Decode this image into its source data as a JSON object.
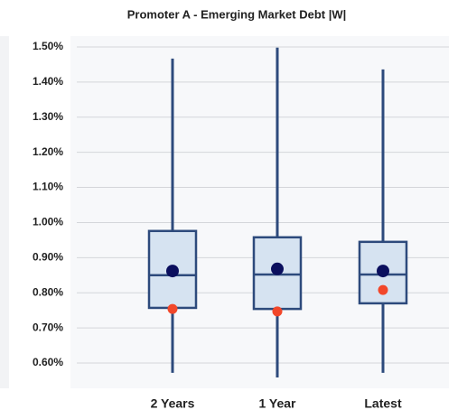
{
  "chart_data": {
    "type": "box",
    "title": "Promoter A - Emerging Market Debt |W|",
    "categories": [
      "2 Years",
      "1 Year",
      "Latest"
    ],
    "whisker_high": [
      1.467,
      1.498,
      1.436
    ],
    "q3": [
      0.976,
      0.958,
      0.945
    ],
    "median": [
      0.85,
      0.852,
      0.852
    ],
    "q1": [
      0.757,
      0.754,
      0.77
    ],
    "whisker_low": [
      0.572,
      0.559,
      0.572
    ],
    "mean": [
      0.862,
      0.868,
      0.862
    ],
    "current": [
      0.754,
      0.747,
      0.808
    ],
    "box_color": "#d6e3f1",
    "line_color": "#2d4a7c",
    "mean_color": "#0b0f5e",
    "current_color": "#f2472a",
    "ylim": [
      0.56,
      1.51
    ],
    "yticks": [
      {
        "value": 0.6,
        "label": "0.60%"
      },
      {
        "value": 0.7,
        "label": "0.70%"
      },
      {
        "value": 0.8,
        "label": "0.80%"
      },
      {
        "value": 0.9,
        "label": "0.90%"
      },
      {
        "value": 1.0,
        "label": "1.00%"
      },
      {
        "value": 1.1,
        "label": "1.10%"
      },
      {
        "value": 1.2,
        "label": "1.20%"
      },
      {
        "value": 1.3,
        "label": "1.30%"
      },
      {
        "value": 1.4,
        "label": "1.40%"
      },
      {
        "value": 1.5,
        "label": "1.50%"
      }
    ],
    "grid": true
  }
}
